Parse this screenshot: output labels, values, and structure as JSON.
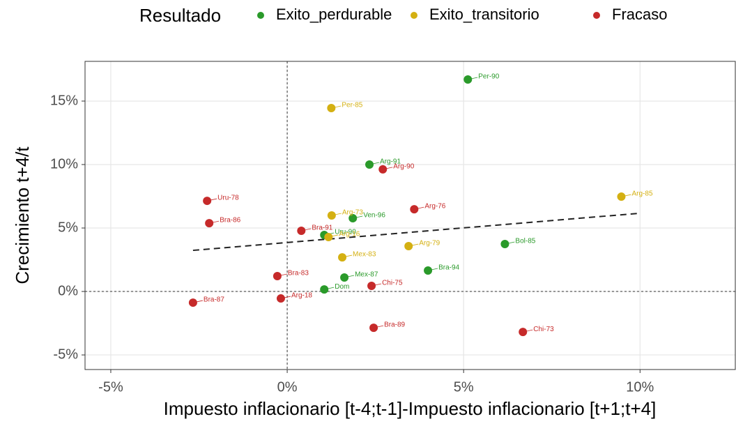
{
  "chart_data": {
    "type": "scatter",
    "legend_title": "Resultado",
    "x_label": "Impuesto inflacionario [t-4;t-1]-Impuesto inflacionario [t+1;t+4]",
    "y_label": "Crecimiento t+4/t",
    "xlim": [
      -5.73,
      12.7
    ],
    "ylim": [
      -6.15,
      18.13
    ],
    "xticks": [
      {
        "value": -5,
        "label": "-5%"
      },
      {
        "value": 0,
        "label": "0%"
      },
      {
        "value": 5,
        "label": "5%"
      },
      {
        "value": 10,
        "label": "10%"
      }
    ],
    "yticks": [
      {
        "value": -5,
        "label": "-5%"
      },
      {
        "value": 0,
        "label": "0%"
      },
      {
        "value": 5,
        "label": "5%"
      },
      {
        "value": 10,
        "label": "10%"
      },
      {
        "value": 15,
        "label": "15%"
      }
    ],
    "grid": true,
    "series": [
      {
        "name": "Exito_perdurable",
        "color": "#2a9a2a",
        "labels": [
          "Per-90",
          "Arg-91",
          "Ven-96",
          "Uru-90",
          "Bol-85",
          "Bra-94",
          "Mex-87",
          "Dom"
        ],
        "x": [
          5.12,
          2.33,
          1.86,
          1.05,
          6.17,
          3.99,
          1.62,
          1.05
        ],
        "values": [
          16.7,
          10.0,
          5.77,
          4.45,
          3.74,
          1.65,
          1.1,
          0.16
        ]
      },
      {
        "name": "Exito_transitorio",
        "color": "#d4b012",
        "labels": [
          "Per-85",
          "Arg-85",
          "Arg-73",
          "Arg-16",
          "Arg-79",
          "Mex-83"
        ],
        "x": [
          1.25,
          9.47,
          1.26,
          1.17,
          3.44,
          1.56
        ],
        "values": [
          14.45,
          7.47,
          5.99,
          4.29,
          3.57,
          2.69
        ]
      },
      {
        "name": "Fracaso",
        "color": "#c62a2a",
        "labels": [
          "Arg-90",
          "Uru-78",
          "Arg-76",
          "Bra-86",
          "Bra-91",
          "Bra-83",
          "Chi-75",
          "Arg-18",
          "Bra-87",
          "Bra-89",
          "Chi-73"
        ],
        "x": [
          2.71,
          -2.27,
          3.6,
          -2.21,
          0.4,
          -0.28,
          2.39,
          -0.18,
          -2.67,
          2.45,
          6.68
        ],
        "values": [
          9.62,
          7.14,
          6.48,
          5.38,
          4.78,
          1.21,
          0.44,
          -0.55,
          -0.88,
          -2.86,
          -3.19
        ]
      }
    ],
    "trend": {
      "x": [
        -2.67,
        9.94
      ],
      "y": [
        3.24,
        6.15
      ]
    }
  }
}
